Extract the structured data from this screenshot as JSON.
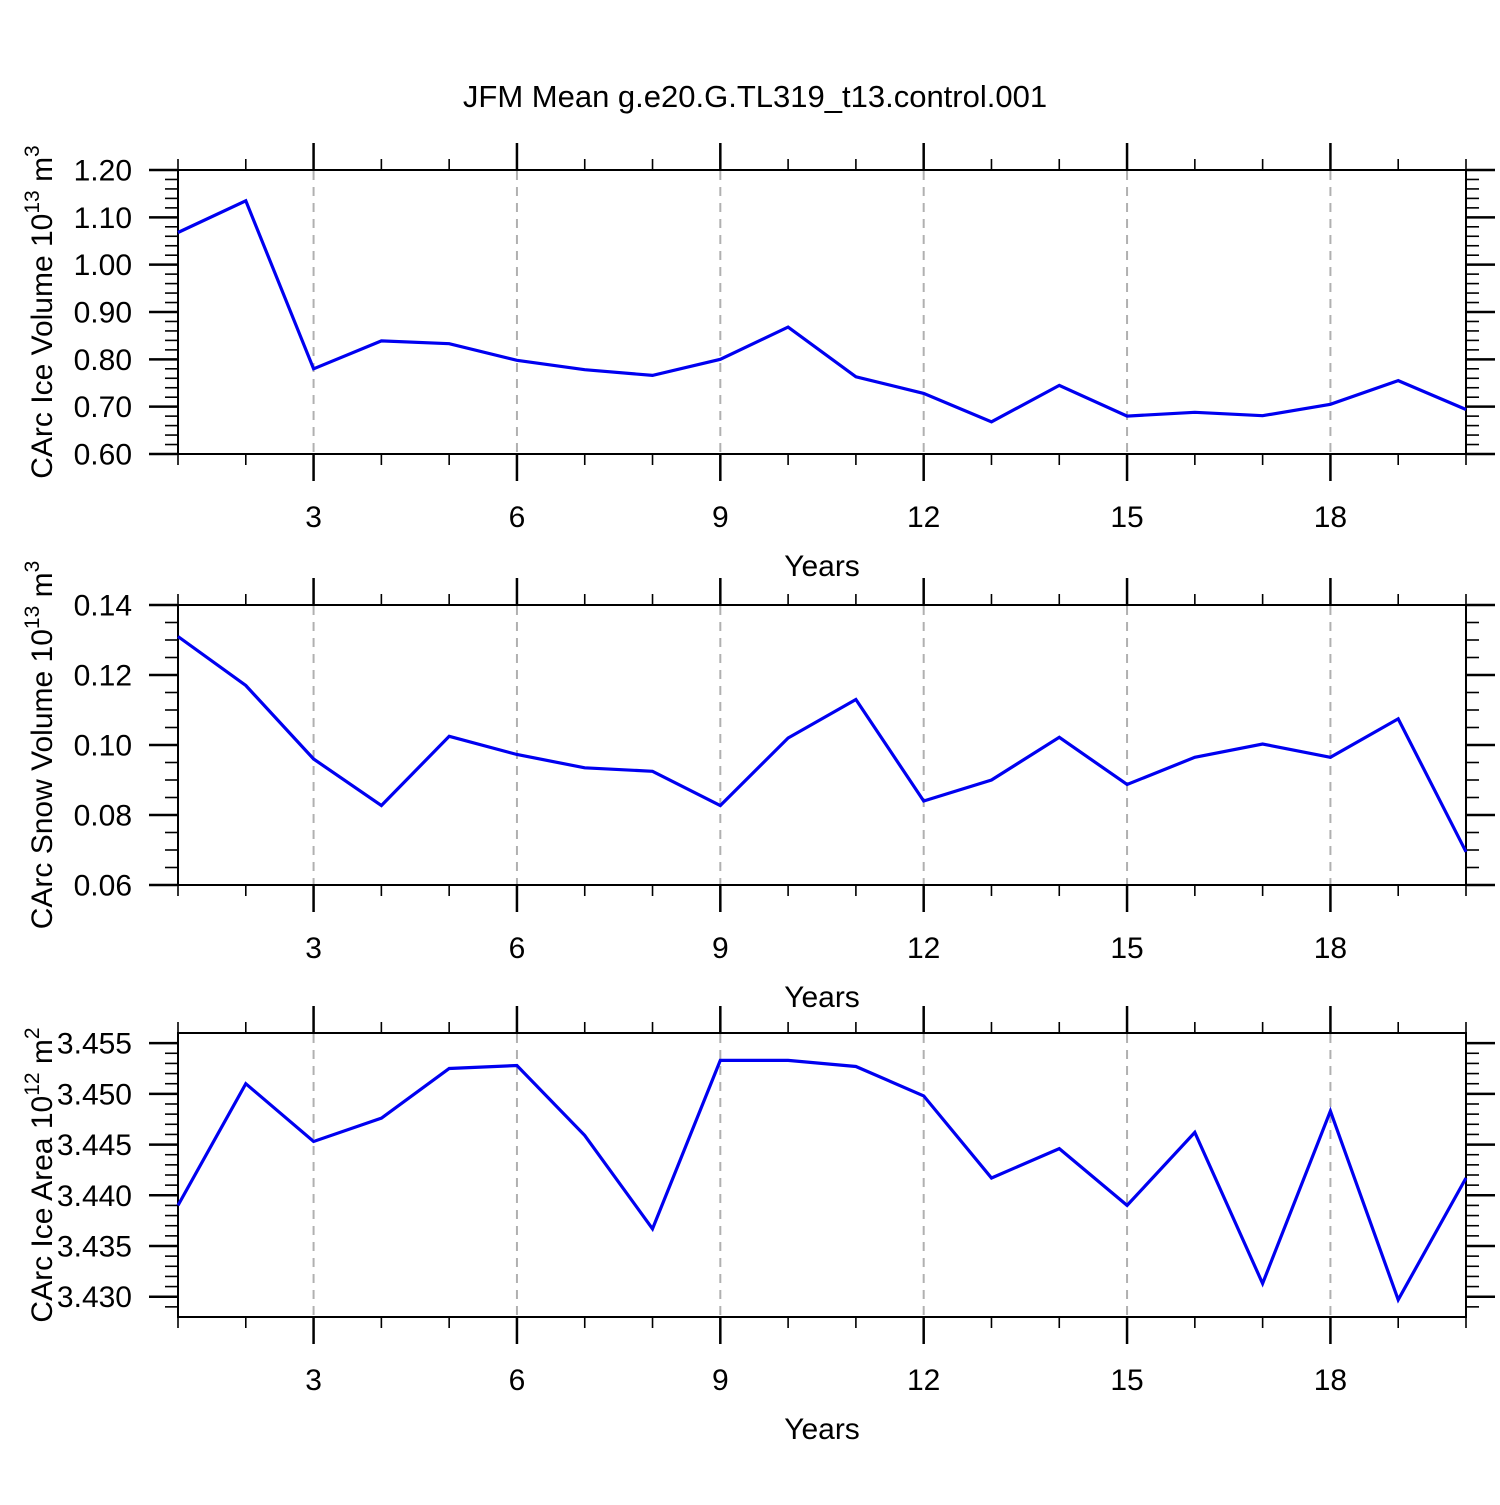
{
  "title": "JFM Mean g.e20.G.TL319_t13.control.001",
  "colors": {
    "line": "#0000f0",
    "grid": "#b0b0b0",
    "axis": "#000000",
    "background": "#ffffff",
    "text": "#000000"
  },
  "x_axis": {
    "label": "Years",
    "range": [
      1,
      20
    ],
    "major_ticks": [
      3,
      6,
      9,
      12,
      15,
      18
    ],
    "minor_tick_step": 1,
    "major_tick_labels": [
      "3",
      "6",
      "9",
      "12",
      "15",
      "18"
    ]
  },
  "chart_data": [
    {
      "type": "line",
      "panel": "ice-volume",
      "ylabel": "CArc Ice Volume 10¹³ m³",
      "ylabel_parts": [
        "CArc Ice Volume 10",
        {
          "sup": "13"
        },
        " m",
        {
          "sup": "3"
        }
      ],
      "xlabel": "Years",
      "x": [
        1,
        2,
        3,
        4,
        5,
        6,
        7,
        8,
        9,
        10,
        11,
        12,
        13,
        14,
        15,
        16,
        17,
        18,
        19,
        20
      ],
      "values": [
        1.068,
        1.135,
        0.78,
        0.839,
        0.833,
        0.798,
        0.778,
        0.766,
        0.8,
        0.868,
        0.763,
        0.728,
        0.668,
        0.745,
        0.68,
        0.688,
        0.681,
        0.705,
        0.755,
        0.694
      ],
      "ylim": [
        0.6,
        1.2
      ],
      "ytick_values": [
        0.6,
        0.7,
        0.8,
        0.9,
        1.0,
        1.1,
        1.2
      ],
      "ytick_labels": [
        "0.60",
        "0.70",
        "0.80",
        "0.90",
        "1.00",
        "1.10",
        "1.20"
      ],
      "minor_step": 0.02,
      "grid": "dashed-vertical-at-major-x",
      "legend": "none"
    },
    {
      "type": "line",
      "panel": "snow-volume",
      "ylabel": "CArc Snow Volume 10¹³ m³",
      "ylabel_parts": [
        "CArc Snow Volume 10",
        {
          "sup": "13"
        },
        " m",
        {
          "sup": "3"
        }
      ],
      "xlabel": "Years",
      "x": [
        1,
        2,
        3,
        4,
        5,
        6,
        7,
        8,
        9,
        10,
        11,
        12,
        13,
        14,
        15,
        16,
        17,
        18,
        19,
        20
      ],
      "values": [
        0.131,
        0.117,
        0.096,
        0.0827,
        0.1025,
        0.0973,
        0.0935,
        0.0925,
        0.0827,
        0.102,
        0.113,
        0.084,
        0.09,
        0.1022,
        0.0887,
        0.0965,
        0.1003,
        0.0965,
        0.1075,
        0.0695
      ],
      "ylim": [
        0.06,
        0.14
      ],
      "ytick_values": [
        0.06,
        0.08,
        0.1,
        0.12,
        0.14
      ],
      "ytick_labels": [
        "0.06",
        "0.08",
        "0.10",
        "0.12",
        "0.14"
      ],
      "minor_step": 0.005,
      "grid": "dashed-vertical-at-major-x",
      "legend": "none"
    },
    {
      "type": "line",
      "panel": "ice-area",
      "ylabel": "CArc Ice Area 10¹² m²",
      "ylabel_parts": [
        "CArc Ice Area 10",
        {
          "sup": "12"
        },
        " m",
        {
          "sup": "2"
        }
      ],
      "xlabel": "Years",
      "x": [
        1,
        2,
        3,
        4,
        5,
        6,
        7,
        8,
        9,
        10,
        11,
        12,
        13,
        14,
        15,
        16,
        17,
        18,
        19,
        20
      ],
      "values": [
        3.439,
        3.451,
        3.4453,
        3.4476,
        3.4525,
        3.4528,
        3.4459,
        3.4367,
        3.4533,
        3.4533,
        3.4527,
        3.4498,
        3.4417,
        3.4446,
        3.439,
        3.4462,
        3.4313,
        3.4483,
        3.4297,
        3.4417
      ],
      "ylim": [
        3.428,
        3.456
      ],
      "ytick_values": [
        3.43,
        3.435,
        3.44,
        3.445,
        3.45,
        3.455
      ],
      "ytick_labels": [
        "3.430",
        "3.435",
        "3.440",
        "3.445",
        "3.450",
        "3.455"
      ],
      "minor_step": 0.001,
      "grid": "dashed-vertical-at-major-x",
      "legend": "none"
    }
  ]
}
